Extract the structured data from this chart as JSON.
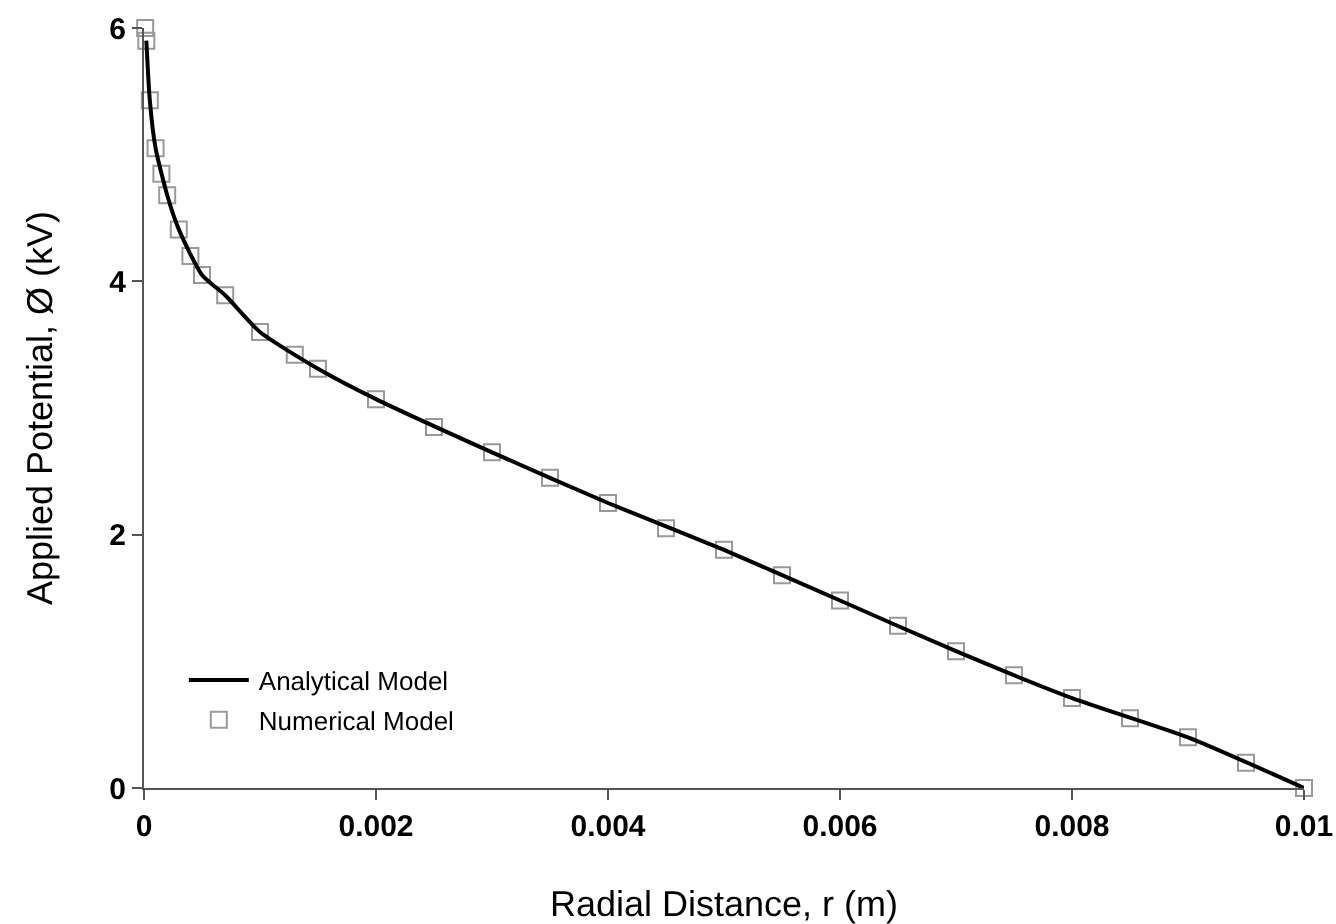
{
  "chart_data": {
    "type": "line",
    "xlabel": "Radial Distance, r (m)",
    "ylabel": "Applied Potential, Ø (kV)",
    "xlim": [
      0,
      0.01
    ],
    "xticks": [
      0,
      0.002,
      0.004,
      0.006,
      0.008,
      0.01
    ],
    "ylim": [
      0,
      6
    ],
    "yticks": [
      0,
      2,
      4,
      6
    ],
    "grid": false,
    "legend": "bottom left",
    "series": [
      {
        "name": "Analytical Model",
        "color": "#000000",
        "marker": "none",
        "line_style": "solid",
        "x": [
          2e-05,
          5e-05,
          0.0001,
          0.0002,
          0.0003,
          0.0005,
          0.0007,
          0.001,
          0.0015,
          0.002,
          0.003,
          0.004,
          0.005,
          0.006,
          0.007,
          0.008,
          0.009,
          0.01
        ],
        "values": [
          5.9,
          5.43,
          5.05,
          4.68,
          4.41,
          4.05,
          3.89,
          3.6,
          3.31,
          3.07,
          2.65,
          2.25,
          1.88,
          1.48,
          1.08,
          0.71,
          0.4,
          0
        ]
      },
      {
        "name": "Numerical Model",
        "type": "scatter",
        "color": "#999999",
        "marker": "square",
        "x": [
          1e-05,
          2e-05,
          5e-05,
          0.0001,
          0.00015,
          0.0002,
          0.0003,
          0.0004,
          0.0005,
          0.0007,
          0.001,
          0.0013,
          0.0015,
          0.002,
          0.0025,
          0.003,
          0.0035,
          0.004,
          0.0045,
          0.005,
          0.0055,
          0.006,
          0.0065,
          0.007,
          0.0075,
          0.008,
          0.0085,
          0.009,
          0.0095,
          0.01
        ],
        "values": [
          6,
          5.9,
          5.43,
          5.05,
          4.85,
          4.68,
          4.41,
          4.2,
          4.05,
          3.89,
          3.6,
          3.42,
          3.31,
          3.07,
          2.85,
          2.65,
          2.45,
          2.25,
          2.05,
          1.88,
          1.68,
          1.48,
          1.28,
          1.08,
          0.89,
          0.71,
          0.55,
          0.4,
          0.2,
          0
        ]
      }
    ]
  }
}
